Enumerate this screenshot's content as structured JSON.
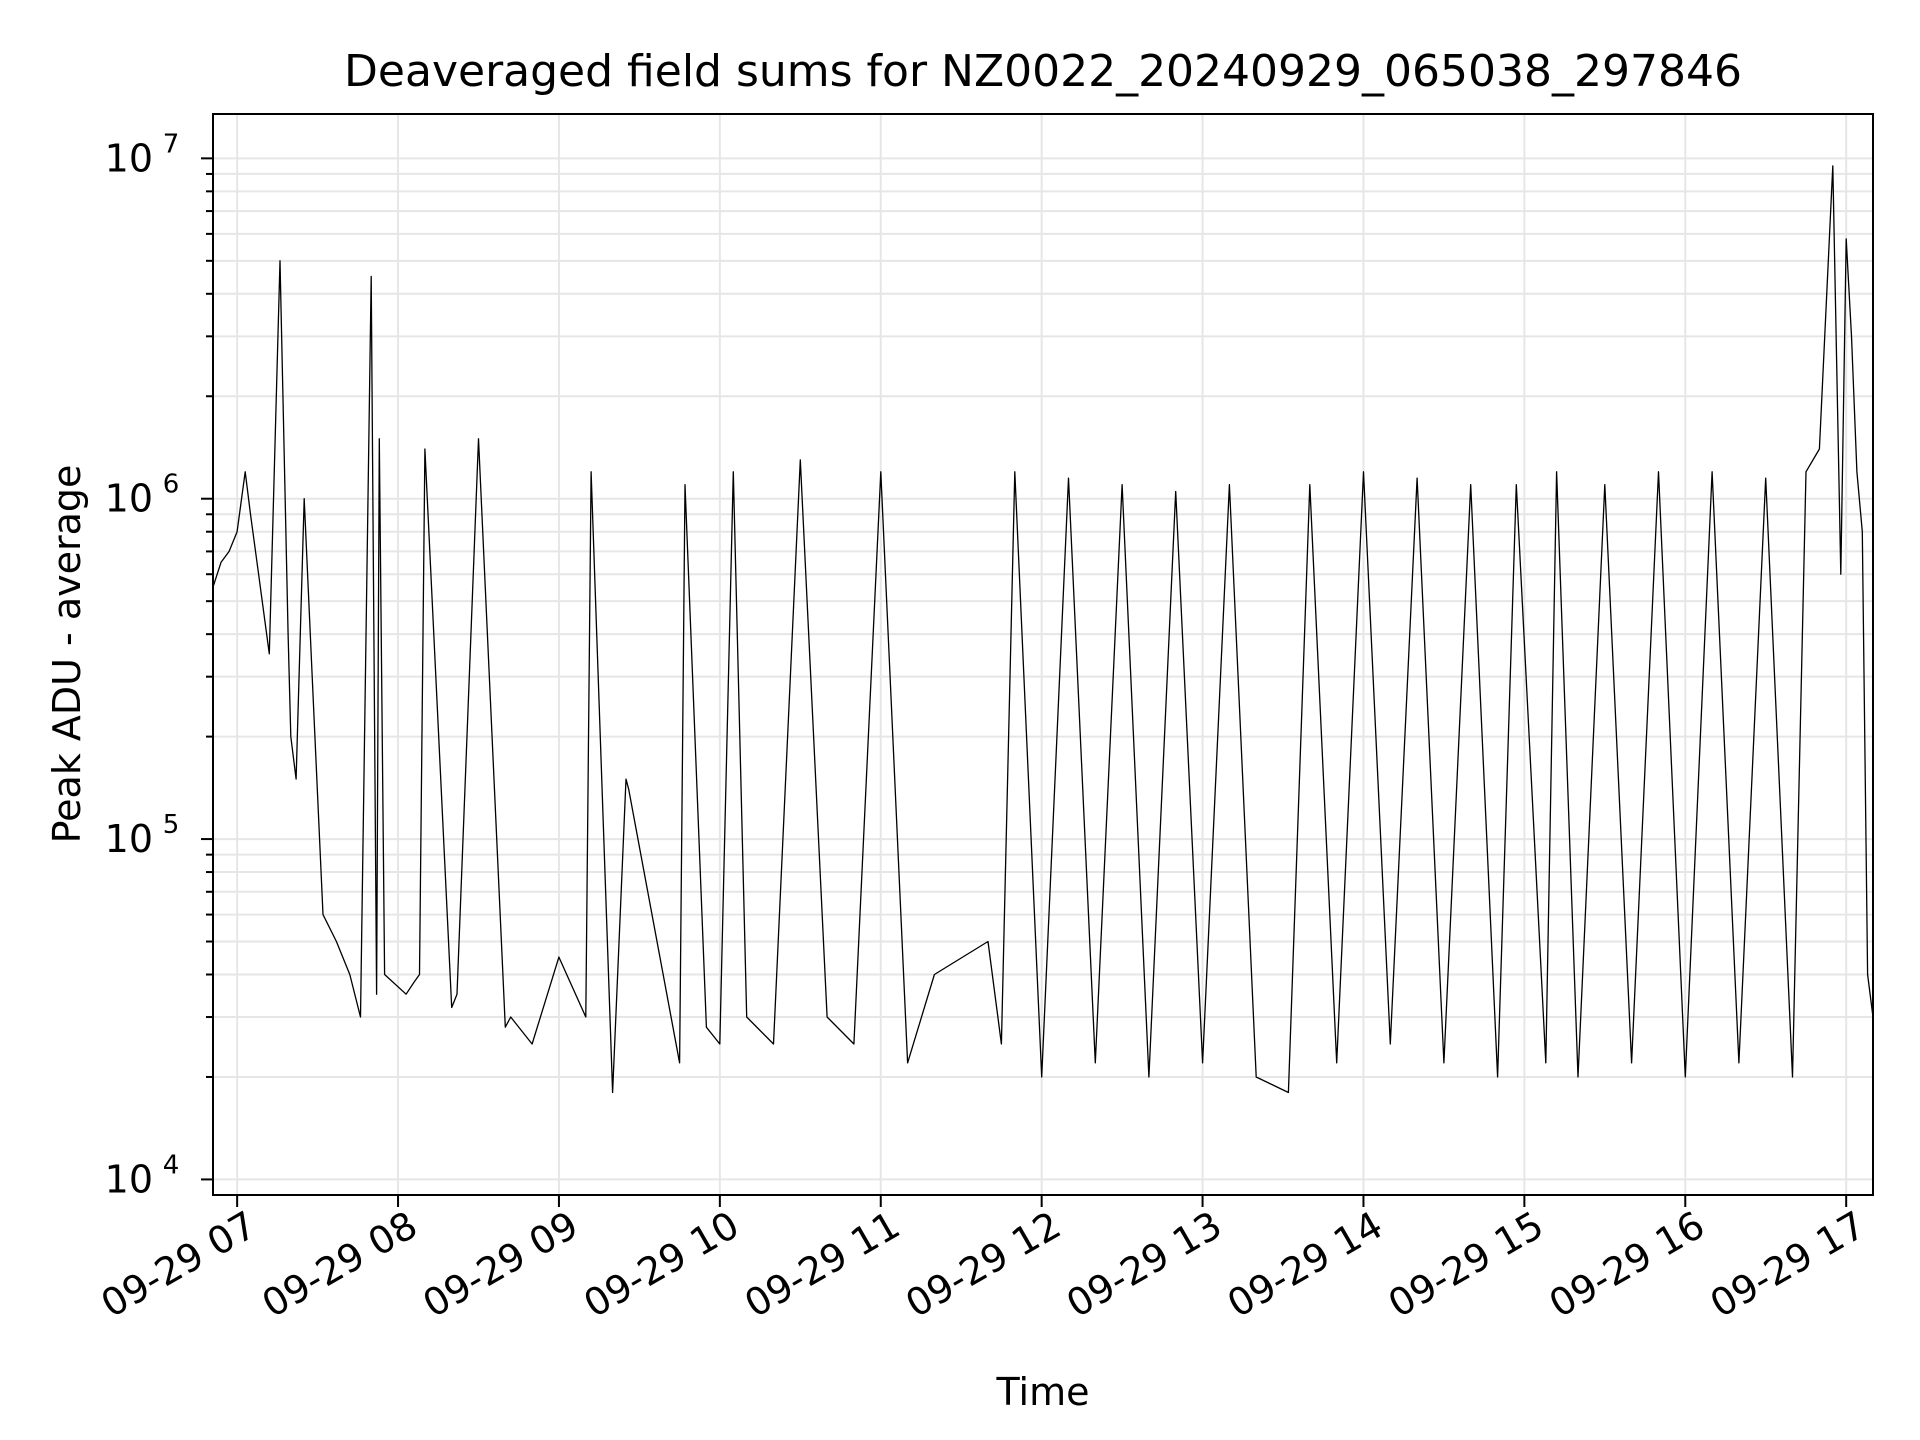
{
  "chart_data": {
    "type": "line",
    "title": "Deaveraged field sums for NZ0022_20240929_065038_297846",
    "xlabel": "Time",
    "ylabel": "Peak ADU - average",
    "yscale": "log",
    "ylim": [
      9000,
      13500000
    ],
    "xlim": [
      "2024-09-29 06:51",
      "2024-09-29 17:10"
    ],
    "grid": true,
    "x_ticks": [
      "09-29 07",
      "09-29 08",
      "09-29 09",
      "09-29 10",
      "09-29 11",
      "09-29 12",
      "09-29 13",
      "09-29 14",
      "09-29 15",
      "09-29 16",
      "09-29 17"
    ],
    "y_ticks": [
      {
        "base": "10",
        "exp": "4",
        "value": 10000
      },
      {
        "base": "10",
        "exp": "5",
        "value": 100000
      },
      {
        "base": "10",
        "exp": "6",
        "value": 1000000
      },
      {
        "base": "10",
        "exp": "7",
        "value": 10000000
      }
    ],
    "colors": {
      "line": "#000000",
      "grid": "#e6e6e6",
      "frame": "#000000"
    },
    "series": [
      {
        "x": [
          "2024-09-29 06:51",
          "2024-09-29 06:54",
          "2024-09-29 06:57",
          "2024-09-29 07:00",
          "2024-09-29 07:03",
          "2024-09-29 07:05",
          "2024-09-29 07:08",
          "2024-09-29 07:12",
          "2024-09-29 07:16",
          "2024-09-29 07:19",
          "2024-09-29 07:20",
          "2024-09-29 07:22",
          "2024-09-29 07:25",
          "2024-09-29 07:28",
          "2024-09-29 07:32",
          "2024-09-29 07:37",
          "2024-09-29 07:42",
          "2024-09-29 07:46",
          "2024-09-29 07:50",
          "2024-09-29 07:52",
          "2024-09-29 07:53",
          "2024-09-29 07:55",
          "2024-09-29 08:03",
          "2024-09-29 08:06",
          "2024-09-29 08:08",
          "2024-09-29 08:10",
          "2024-09-29 08:20",
          "2024-09-29 08:22",
          "2024-09-29 08:30",
          "2024-09-29 08:40",
          "2024-09-29 08:42",
          "2024-09-29 08:50",
          "2024-09-29 09:00",
          "2024-09-29 09:10",
          "2024-09-29 09:12",
          "2024-09-29 09:20",
          "2024-09-29 09:25",
          "2024-09-29 09:26",
          "2024-09-29 09:45",
          "2024-09-29 09:47",
          "2024-09-29 09:55",
          "2024-09-29 10:00",
          "2024-09-29 10:05",
          "2024-09-29 10:10",
          "2024-09-29 10:20",
          "2024-09-29 10:30",
          "2024-09-29 10:40",
          "2024-09-29 10:50",
          "2024-09-29 11:00",
          "2024-09-29 11:10",
          "2024-09-29 11:20",
          "2024-09-29 11:40",
          "2024-09-29 11:45",
          "2024-09-29 11:50",
          "2024-09-29 12:00",
          "2024-09-29 12:10",
          "2024-09-29 12:20",
          "2024-09-29 12:30",
          "2024-09-29 12:40",
          "2024-09-29 12:50",
          "2024-09-29 13:00",
          "2024-09-29 13:10",
          "2024-09-29 13:20",
          "2024-09-29 13:32",
          "2024-09-29 13:40",
          "2024-09-29 13:50",
          "2024-09-29 14:00",
          "2024-09-29 14:10",
          "2024-09-29 14:20",
          "2024-09-29 14:30",
          "2024-09-29 14:40",
          "2024-09-29 14:50",
          "2024-09-29 14:57",
          "2024-09-29 15:08",
          "2024-09-29 15:12",
          "2024-09-29 15:20",
          "2024-09-29 15:30",
          "2024-09-29 15:40",
          "2024-09-29 15:50",
          "2024-09-29 16:00",
          "2024-09-29 16:10",
          "2024-09-29 16:20",
          "2024-09-29 16:30",
          "2024-09-29 16:40",
          "2024-09-29 16:45",
          "2024-09-29 16:50",
          "2024-09-29 16:55",
          "2024-09-29 16:58",
          "2024-09-29 17:00",
          "2024-09-29 17:02",
          "2024-09-29 17:04",
          "2024-09-29 17:06",
          "2024-09-29 17:08",
          "2024-09-29 17:10"
        ],
        "y": [
          550000,
          650000,
          700000,
          800000,
          1200000,
          900000,
          600000,
          350000,
          5000000,
          400000,
          200000,
          150000,
          1000000,
          300000,
          60000,
          50000,
          40000,
          30000,
          4500000,
          35000,
          1500000,
          40000,
          35000,
          38000,
          40000,
          1400000,
          32000,
          35000,
          1500000,
          28000,
          30000,
          25000,
          45000,
          30000,
          1200000,
          18000,
          150000,
          140000,
          22000,
          1100000,
          28000,
          25000,
          1200000,
          30000,
          25000,
          1300000,
          30000,
          25000,
          1200000,
          22000,
          40000,
          50000,
          25000,
          1200000,
          20000,
          1150000,
          22000,
          1100000,
          20000,
          1050000,
          22000,
          1100000,
          20000,
          18000,
          1100000,
          22000,
          1200000,
          25000,
          1150000,
          22000,
          1100000,
          20000,
          1100000,
          22000,
          1200000,
          20000,
          1100000,
          22000,
          1200000,
          20000,
          1200000,
          22000,
          1150000,
          20000,
          1200000,
          1400000,
          9500000,
          600000,
          5800000,
          3000000,
          1200000,
          800000,
          40000,
          30000
        ]
      }
    ]
  }
}
